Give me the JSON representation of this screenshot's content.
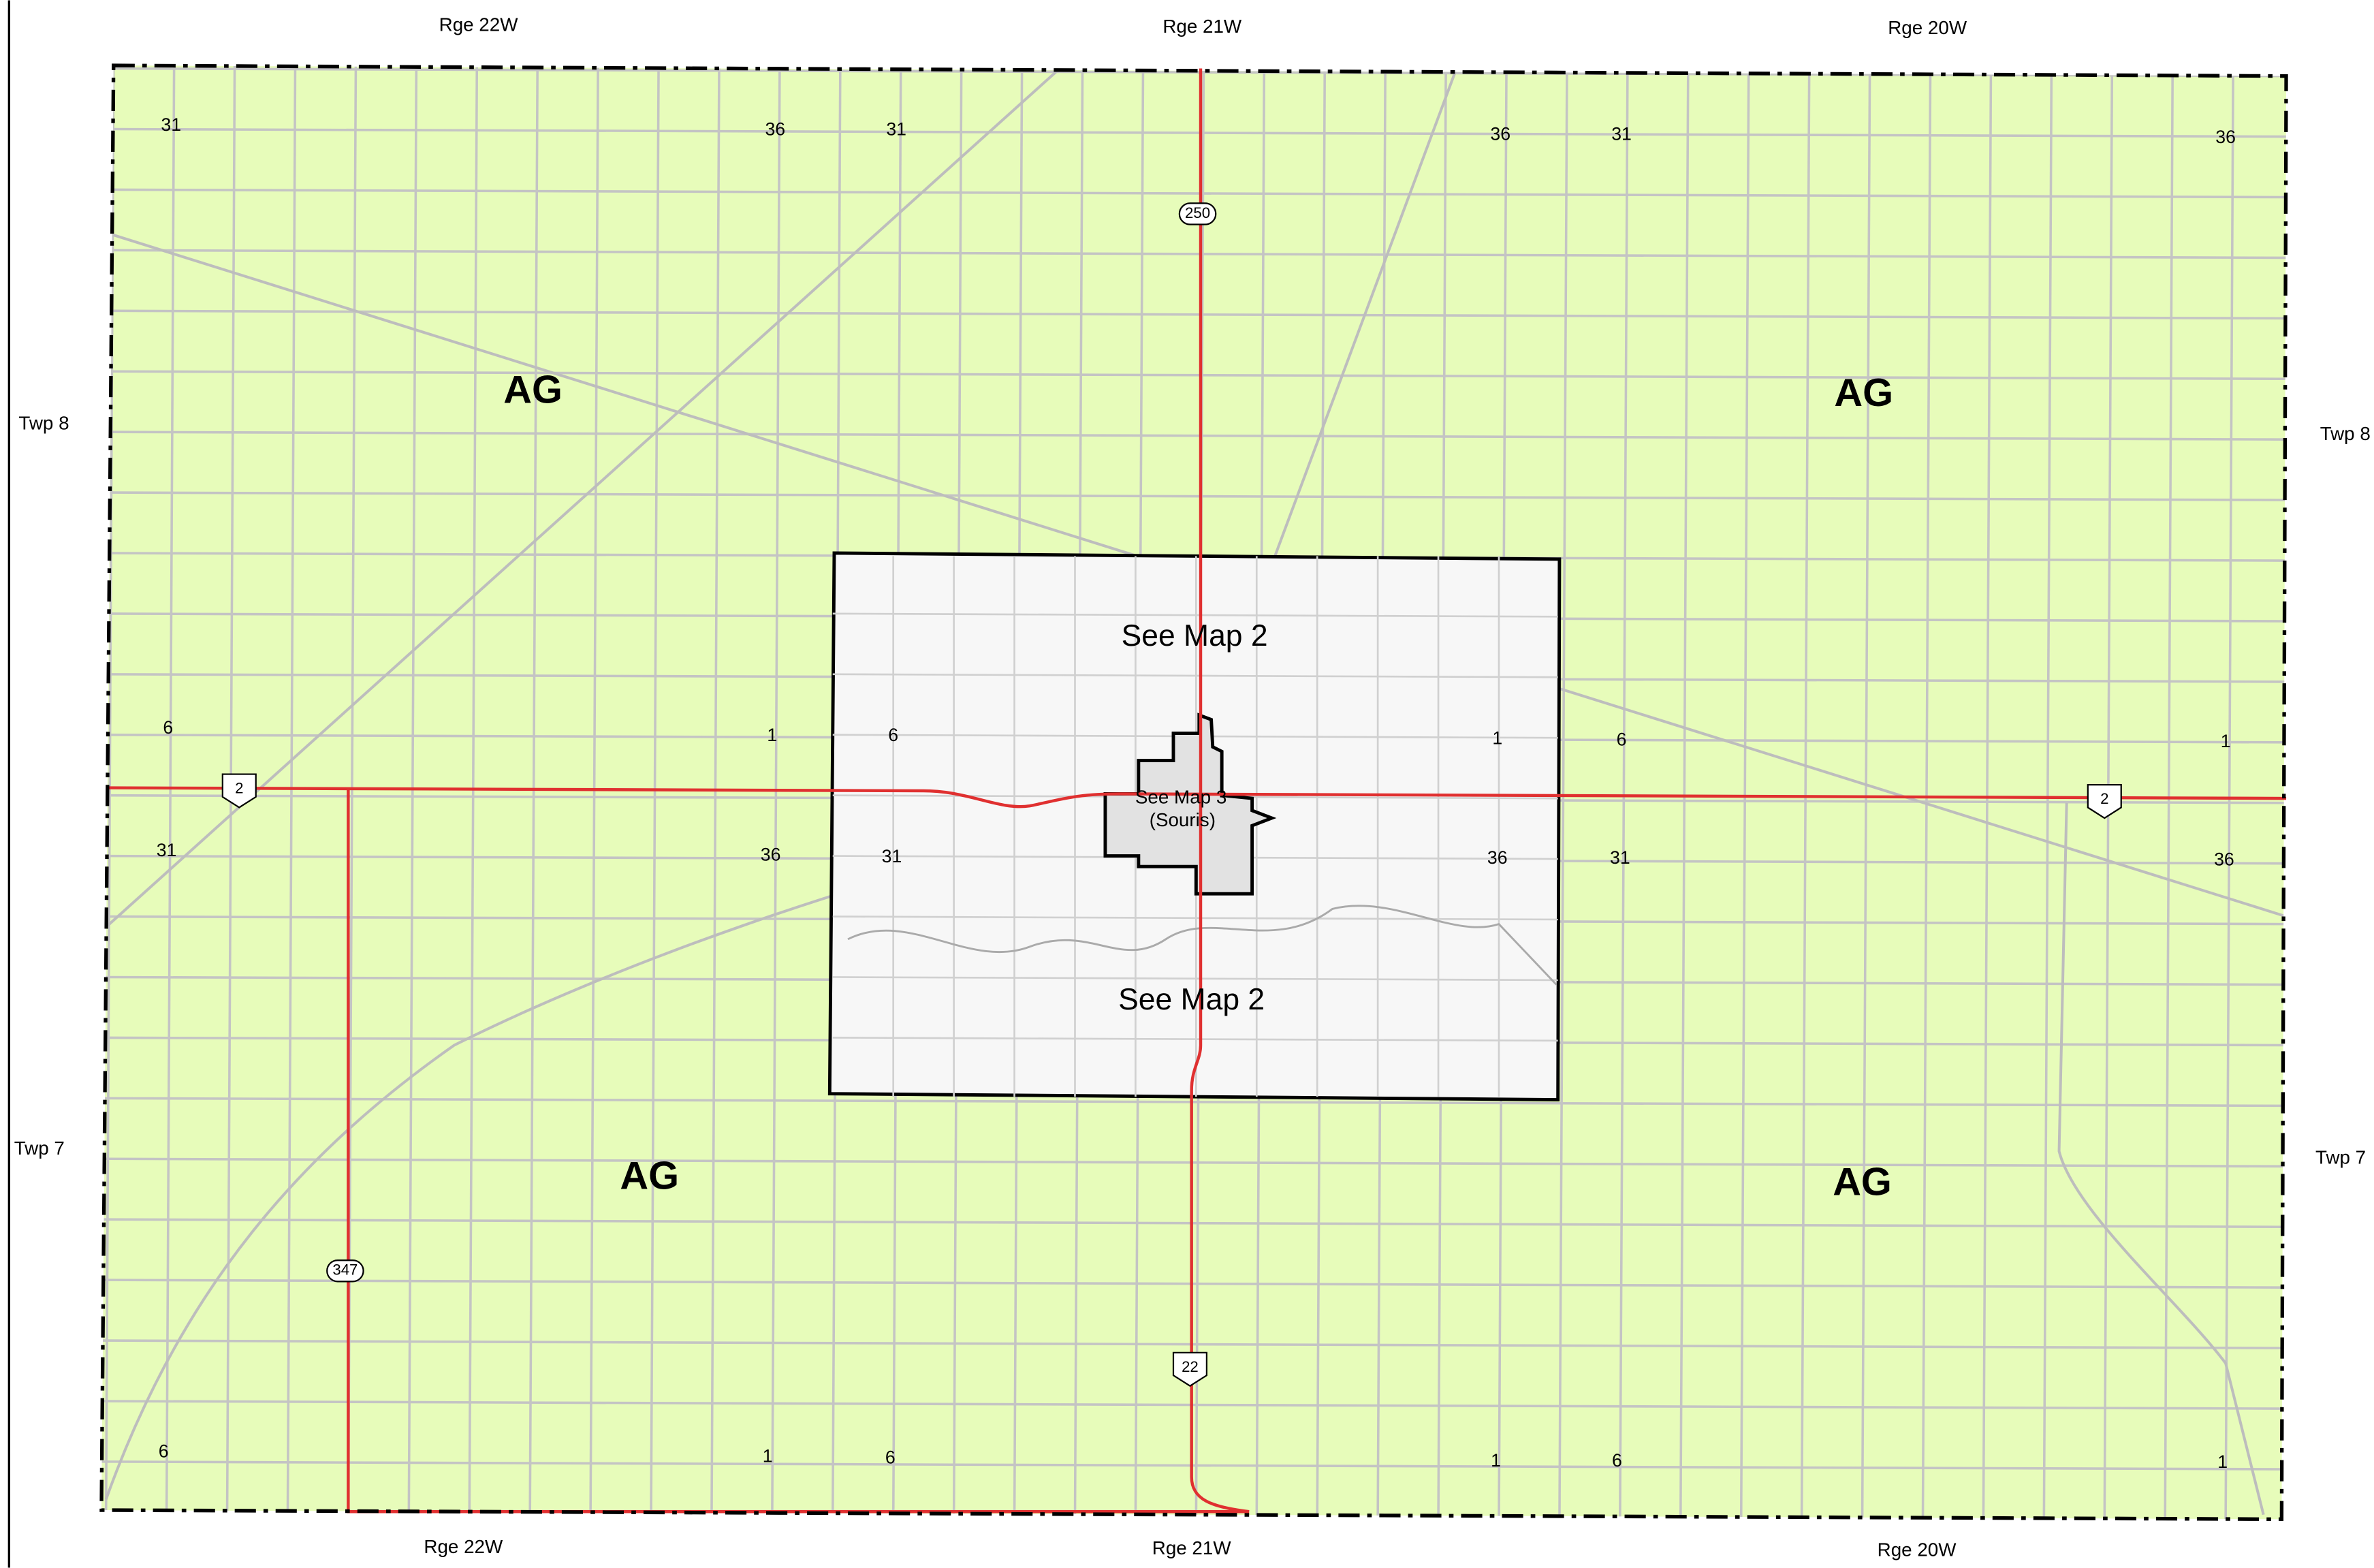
{
  "ranges_top": [
    "Rge 22W",
    "Rge 21W",
    "Rge 20W"
  ],
  "ranges_bottom": [
    "Rge 22W",
    "Rge 21W",
    "Rge 20W"
  ],
  "townships": [
    "Twp 8",
    "Twp 8",
    "Twp 7",
    "Twp 7"
  ],
  "zones": [
    "AG",
    "AG",
    "AG",
    "AG"
  ],
  "map_refs": [
    "See Map 2",
    "See Map 2"
  ],
  "town": {
    "label": "See Map 3",
    "name": "(Souris)"
  },
  "sections": [
    31,
    36,
    31,
    36,
    31,
    36,
    6,
    1,
    6,
    1,
    6,
    1,
    31,
    36,
    31,
    36,
    31,
    36,
    6,
    1,
    6,
    1,
    6,
    1
  ],
  "highways": [
    "250",
    "2",
    "2",
    "347",
    "22"
  ]
}
